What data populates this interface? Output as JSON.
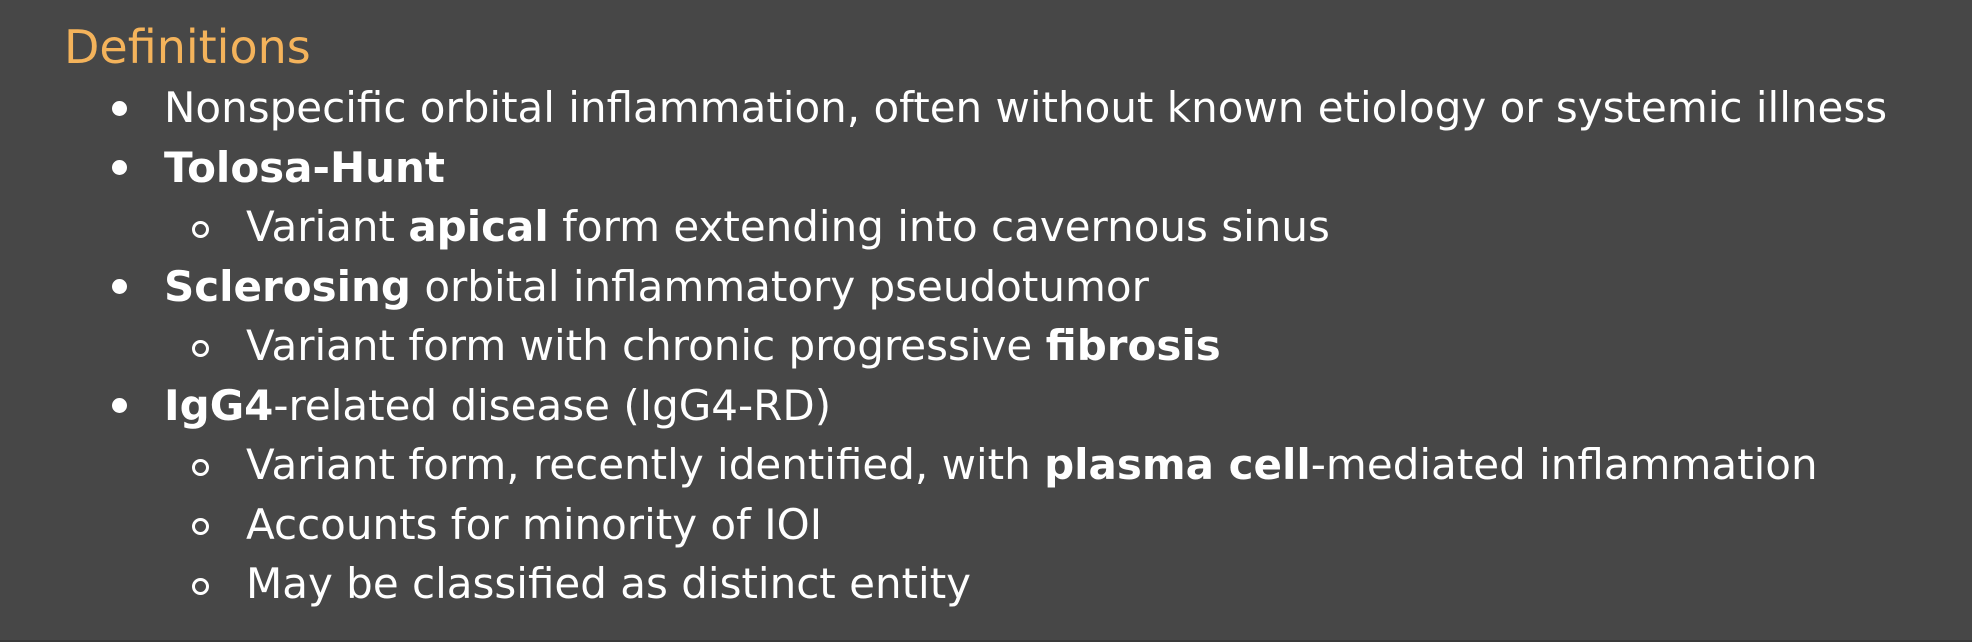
{
  "heading": "Definitions",
  "items": [
    {
      "text_a": "Nonspecific orbital inflammation, often without known etiology or systemic illness"
    },
    {
      "bold_a": "Tolosa-Hunt",
      "sub": [
        {
          "text_a": "Variant ",
          "bold_a": "apical",
          "text_b": " form extending into cavernous sinus"
        }
      ]
    },
    {
      "bold_a": "Sclerosing",
      "text_a": " orbital inflammatory pseudotumor",
      "sub": [
        {
          "text_a": "Variant form with chronic progressive ",
          "bold_a": "fibrosis"
        }
      ]
    },
    {
      "bold_a": "IgG4",
      "text_a": "-related disease (IgG4-RD)",
      "sub": [
        {
          "text_a": "Variant form, recently identified, with ",
          "bold_a": "plasma cell",
          "text_b": "-mediated inflammation"
        },
        {
          "text_a": "Accounts for minority of IOI"
        },
        {
          "text_a": "May be classified as distinct entity"
        }
      ]
    }
  ]
}
